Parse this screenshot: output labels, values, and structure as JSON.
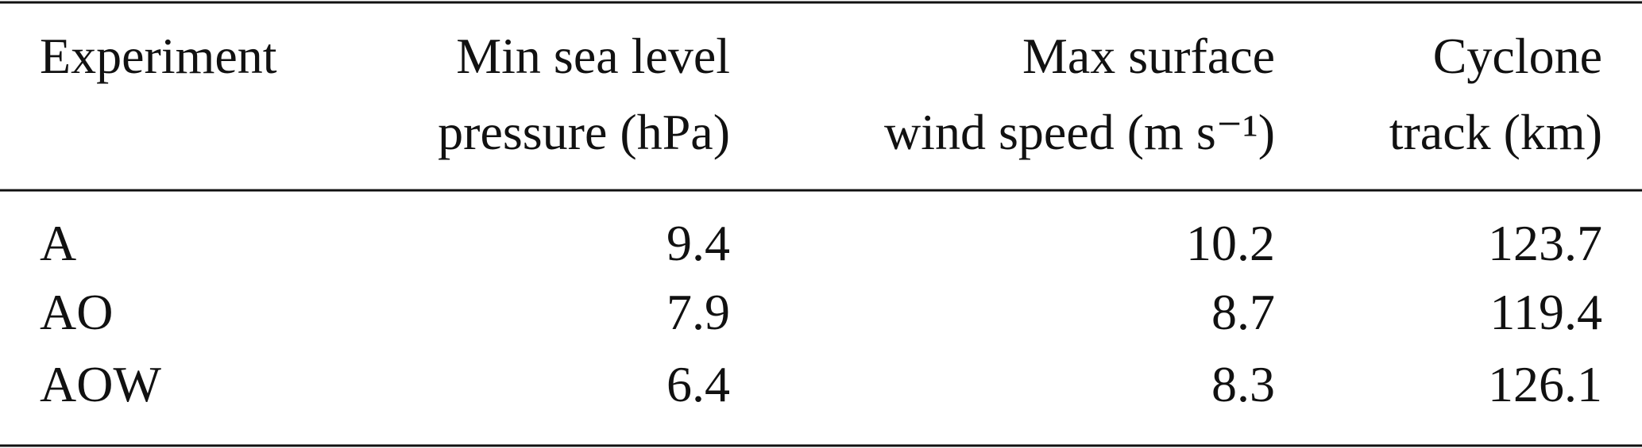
{
  "table": {
    "header": [
      [
        "Experiment"
      ],
      [
        "Min sea level",
        "pressure (hPa)"
      ],
      [
        "Max surface",
        "wind speed (m s⁻¹)"
      ],
      [
        "Cyclone",
        "track (km)"
      ]
    ],
    "rows": [
      [
        "A",
        9.4,
        10.2,
        123.7
      ],
      [
        "AO",
        7.9,
        8.7,
        119.4
      ],
      [
        "AOW",
        6.4,
        8.3,
        126.1
      ]
    ]
  }
}
